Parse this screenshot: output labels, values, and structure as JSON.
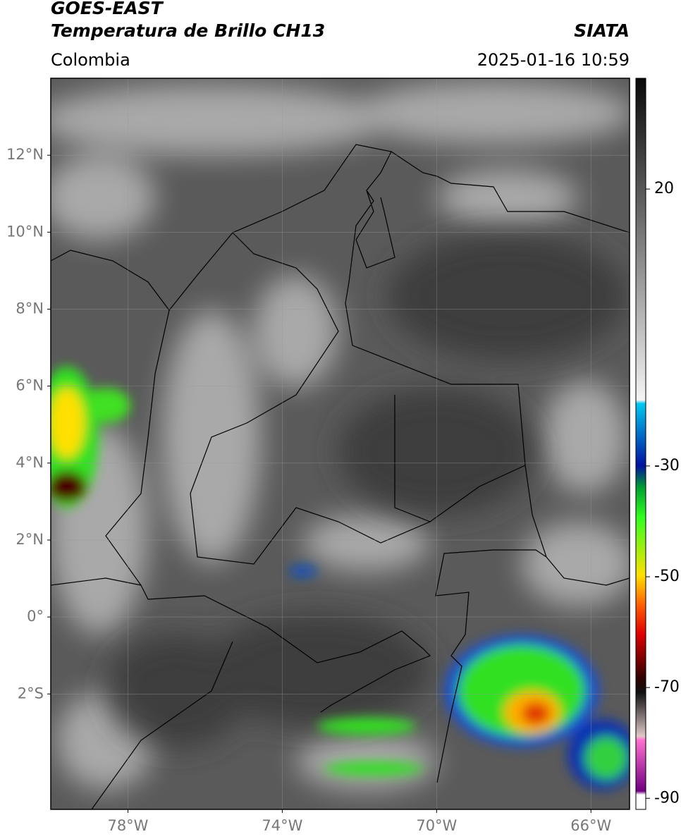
{
  "header": {
    "title": "GOES-EAST",
    "subtitle": "Temperatura de Brillo CH13",
    "source": "SIATA",
    "region": "Colombia",
    "datetime": "2025-01-16 10:59"
  },
  "map": {
    "lon_range": [
      -80,
      -65
    ],
    "lat_range": [
      -5,
      14
    ],
    "lon_ticks": [
      {
        "value": -78,
        "label": "78°W"
      },
      {
        "value": -74,
        "label": "74°W"
      },
      {
        "value": -70,
        "label": "70°W"
      },
      {
        "value": -66,
        "label": "66°W"
      }
    ],
    "lat_ticks": [
      {
        "value": 12,
        "label": "12°N"
      },
      {
        "value": 10,
        "label": "10°N"
      },
      {
        "value": 8,
        "label": "8°N"
      },
      {
        "value": 6,
        "label": "6°N"
      },
      {
        "value": 4,
        "label": "4°N"
      },
      {
        "value": 2,
        "label": "2°N"
      },
      {
        "value": 0,
        "label": "0°"
      },
      {
        "value": -2,
        "label": "2°S"
      }
    ],
    "grid": true
  },
  "colorbar": {
    "range": [
      -92,
      40
    ],
    "ticks": [
      20,
      -30,
      -50,
      -70,
      -90
    ]
  }
}
